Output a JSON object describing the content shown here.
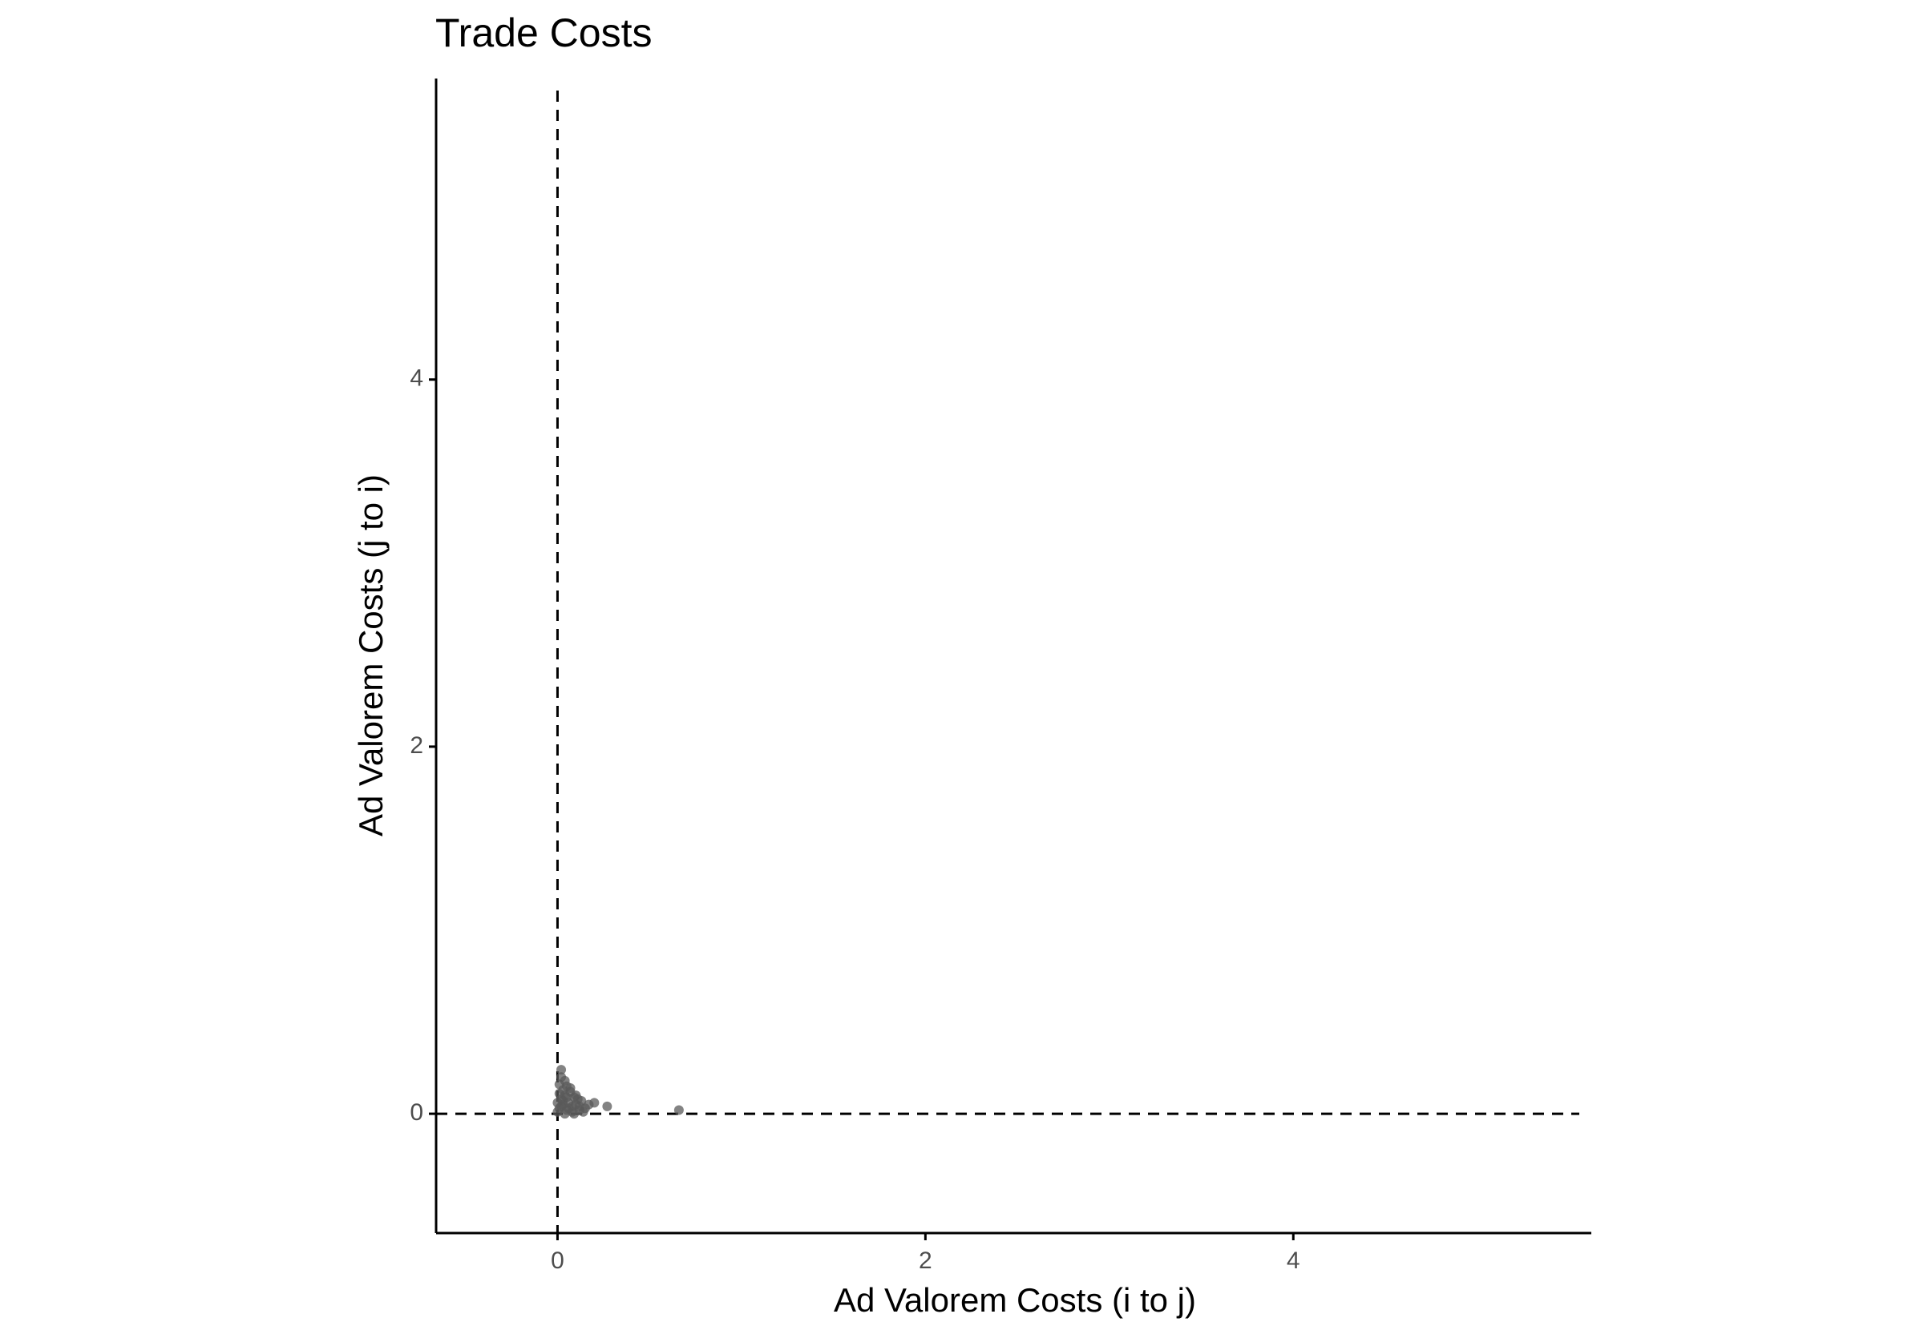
{
  "chart_data": {
    "type": "scatter",
    "title": "Trade Costs",
    "x_label": "Ad Valorem Costs (i to j)",
    "y_label": "Ad Valorem Costs (j to i)",
    "x": [
      0.66,
      0.27,
      0.2,
      0.17,
      0.15,
      0.13,
      0.12,
      0.1,
      0.09,
      0.08,
      0.07,
      0.06,
      0.05,
      0.05,
      0.04,
      0.04,
      0.03,
      0.03,
      0.02,
      0.02,
      0.02,
      0.01,
      0.01,
      0.01,
      0.0,
      0.0,
      0.11,
      0.08,
      0.06,
      0.03,
      0.14,
      0.1,
      0.07,
      0.05,
      0.02,
      0.04,
      0.09,
      0.12
    ],
    "values": [
      0.02,
      0.04,
      0.06,
      0.05,
      0.03,
      0.07,
      0.02,
      0.05,
      0.09,
      0.04,
      0.12,
      0.06,
      0.15,
      0.02,
      0.1,
      0.18,
      0.05,
      0.13,
      0.24,
      0.2,
      0.08,
      0.16,
      0.03,
      0.11,
      0.06,
      0.01,
      0.08,
      0.01,
      0.03,
      0.07,
      0.01,
      0.1,
      0.14,
      0.09,
      0.04,
      0.0,
      0.0,
      0.04
    ],
    "color": "#5a5a5a",
    "xlim": [
      -0.66,
      5.62
    ],
    "ylim": [
      -0.65,
      5.64
    ],
    "xticks": [
      0,
      2,
      4
    ],
    "yticks": [
      0,
      2,
      4
    ],
    "reference_lines": {
      "x": 0,
      "y": 0
    },
    "grid": false
  }
}
